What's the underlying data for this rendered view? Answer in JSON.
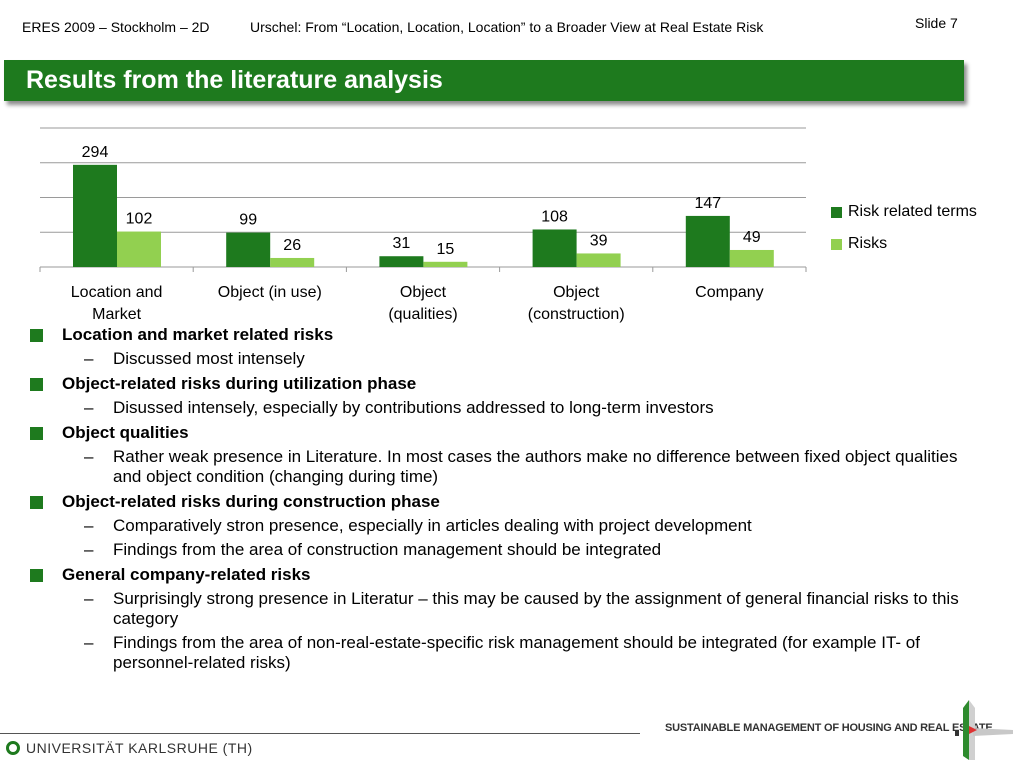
{
  "header": {
    "left": "ERES 2009 – Stockholm – 2D",
    "center": "Urschel: From “Location, Location, Location” to a Broader View at Real Estate Risk",
    "slide": "Slide 7"
  },
  "title": "Results from the literature analysis",
  "chart_data": {
    "type": "bar",
    "categories": [
      "Location and Market",
      "Object (in use)",
      "Object (qualities)",
      "Object (construction)",
      "Company"
    ],
    "series": [
      {
        "name": "Risk related terms",
        "values": [
          294,
          99,
          31,
          108,
          147
        ],
        "color": "#1e7a1e"
      },
      {
        "name": "Risks",
        "values": [
          102,
          26,
          15,
          39,
          49
        ],
        "color": "#92d050"
      }
    ],
    "ylim": [
      0,
      400
    ],
    "grid": true,
    "legend": "right",
    "title": "",
    "xlabel": "",
    "ylabel": ""
  },
  "bullets": [
    {
      "heading": "Location and market related risks",
      "subs": [
        "Discussed most intensely"
      ]
    },
    {
      "heading": "Object-related risks during utilization phase",
      "subs": [
        "Disussed intensely, especially by contributions addressed to long-term investors"
      ]
    },
    {
      "heading": "Object qualities",
      "subs": [
        "Rather weak presence in Literature. In most cases the authors make no difference between fixed object qualities and object condition (changing during time)"
      ]
    },
    {
      "heading": "Object-related risks during construction phase",
      "subs": [
        "Comparatively stron presence, especially in articles dealing with project development",
        "Findings from the area of construction management should be integrated"
      ]
    },
    {
      "heading": "General company-related risks",
      "subs": [
        "Surprisingly strong presence in Literatur – this may be caused by the assignment of general financial risks to this category",
        "Findings from the area of non-real-estate-specific risk management should be integrated (for example IT- of personnel-related risks)"
      ]
    }
  ],
  "footer": {
    "university": "UNIVERSITÄT KARLSRUHE (TH)",
    "tagline": "SUSTAINABLE MANAGEMENT OF HOUSING AND REAL ESTATE",
    "logo_icon": "university-logo-icon",
    "flag_icon": "italian-flag-mark-icon"
  }
}
